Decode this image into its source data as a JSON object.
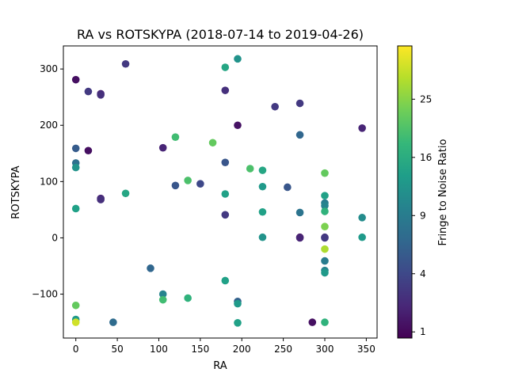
{
  "chart_data": {
    "type": "scatter",
    "title": "RA vs ROTSKYPA (2018-07-14 to 2019-04-26)",
    "xlabel": "RA",
    "ylabel": "ROTSKYPA",
    "xlim": [
      -15,
      363
    ],
    "ylim": [
      -178,
      341
    ],
    "xticks": [
      0,
      50,
      100,
      150,
      200,
      250,
      300,
      350
    ],
    "yticks": [
      -100,
      0,
      100,
      200,
      300
    ],
    "grid": false,
    "colorbar": {
      "label": "Fringe to Noise Ratio",
      "ticks": [
        1,
        4,
        9,
        16,
        25
      ],
      "scale": "sqrt",
      "range": [
        0.8,
        35
      ],
      "colormap": [
        "#440154",
        "#482878",
        "#3e4989",
        "#31688e",
        "#26828e",
        "#1f9e89",
        "#35b779",
        "#6ece58",
        "#b5de2b",
        "#fde725"
      ]
    },
    "points": [
      {
        "x": 0,
        "y": 281,
        "c": 1.2
      },
      {
        "x": 0,
        "y": 159,
        "c": 5.5
      },
      {
        "x": 0,
        "y": 133,
        "c": 7.5
      },
      {
        "x": 0,
        "y": 125,
        "c": 12
      },
      {
        "x": 0,
        "y": 52,
        "c": 14
      },
      {
        "x": 0,
        "y": -120,
        "c": 22
      },
      {
        "x": 0,
        "y": -145,
        "c": 13
      },
      {
        "x": 0,
        "y": -150,
        "c": 31
      },
      {
        "x": 15,
        "y": 260,
        "c": 3
      },
      {
        "x": 15,
        "y": 155,
        "c": 1.2
      },
      {
        "x": 30,
        "y": 256,
        "c": 2
      },
      {
        "x": 30,
        "y": 254,
        "c": 2.5
      },
      {
        "x": 30,
        "y": 70,
        "c": 2
      },
      {
        "x": 30,
        "y": 68,
        "c": 2.5
      },
      {
        "x": 45,
        "y": -150,
        "c": 7
      },
      {
        "x": 60,
        "y": 309,
        "c": 3
      },
      {
        "x": 60,
        "y": 79,
        "c": 15
      },
      {
        "x": 90,
        "y": -54,
        "c": 6.5
      },
      {
        "x": 105,
        "y": 160,
        "c": 2
      },
      {
        "x": 105,
        "y": -100,
        "c": 10
      },
      {
        "x": 105,
        "y": -110,
        "c": 19
      },
      {
        "x": 120,
        "y": 179,
        "c": 19
      },
      {
        "x": 120,
        "y": 93,
        "c": 5
      },
      {
        "x": 135,
        "y": 102,
        "c": 20
      },
      {
        "x": 135,
        "y": -107,
        "c": 17
      },
      {
        "x": 150,
        "y": 96,
        "c": 4
      },
      {
        "x": 165,
        "y": 169,
        "c": 22
      },
      {
        "x": 180,
        "y": 303,
        "c": 15
      },
      {
        "x": 180,
        "y": 262,
        "c": 2.5
      },
      {
        "x": 180,
        "y": 134,
        "c": 5
      },
      {
        "x": 180,
        "y": 78,
        "c": 14
      },
      {
        "x": 180,
        "y": 41,
        "c": 3
      },
      {
        "x": 180,
        "y": -76,
        "c": 14
      },
      {
        "x": 195,
        "y": 318,
        "c": 12
      },
      {
        "x": 195,
        "y": 200,
        "c": 1.3
      },
      {
        "x": 195,
        "y": -113,
        "c": 6
      },
      {
        "x": 195,
        "y": -117,
        "c": 13
      },
      {
        "x": 195,
        "y": -151,
        "c": 14
      },
      {
        "x": 210,
        "y": 123,
        "c": 20
      },
      {
        "x": 225,
        "y": 120,
        "c": 15
      },
      {
        "x": 225,
        "y": 91,
        "c": 13
      },
      {
        "x": 225,
        "y": 46,
        "c": 14
      },
      {
        "x": 225,
        "y": 1,
        "c": 12
      },
      {
        "x": 240,
        "y": 233,
        "c": 3
      },
      {
        "x": 255,
        "y": 90,
        "c": 5
      },
      {
        "x": 270,
        "y": 239,
        "c": 3
      },
      {
        "x": 270,
        "y": 183,
        "c": 6.5
      },
      {
        "x": 270,
        "y": 45,
        "c": 8
      },
      {
        "x": 270,
        "y": 1,
        "c": 1.2
      },
      {
        "x": 270,
        "y": 0,
        "c": 2
      },
      {
        "x": 285,
        "y": -150,
        "c": 1.2
      },
      {
        "x": 300,
        "y": 115,
        "c": 22
      },
      {
        "x": 300,
        "y": 75,
        "c": 14
      },
      {
        "x": 300,
        "y": 62,
        "c": 9
      },
      {
        "x": 300,
        "y": 57,
        "c": 10
      },
      {
        "x": 300,
        "y": 47,
        "c": 17
      },
      {
        "x": 300,
        "y": 20,
        "c": 24
      },
      {
        "x": 300,
        "y": 1,
        "c": 2.5
      },
      {
        "x": 300,
        "y": 0,
        "c": 3
      },
      {
        "x": 300,
        "y": -20,
        "c": 28
      },
      {
        "x": 300,
        "y": -41,
        "c": 9
      },
      {
        "x": 300,
        "y": -58,
        "c": 10
      },
      {
        "x": 300,
        "y": -62,
        "c": 13
      },
      {
        "x": 300,
        "y": -150,
        "c": 17
      },
      {
        "x": 345,
        "y": 195,
        "c": 2
      },
      {
        "x": 345,
        "y": 36,
        "c": 11
      },
      {
        "x": 345,
        "y": 1,
        "c": 13
      }
    ]
  }
}
